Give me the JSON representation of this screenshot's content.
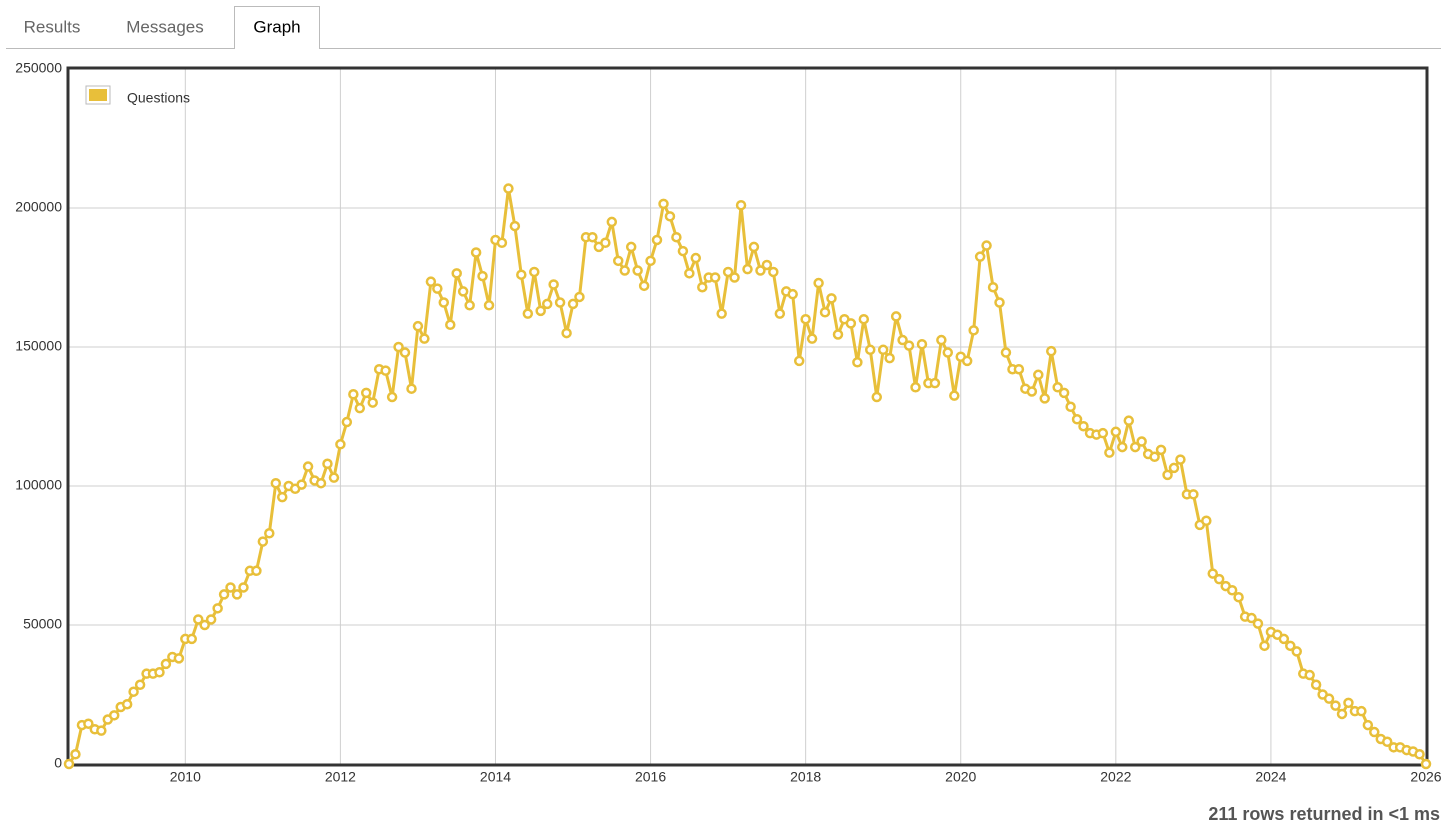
{
  "tabs": [
    "Results",
    "Messages",
    "Graph"
  ],
  "active_tab": 2,
  "status": "211 rows returned in <1 ms",
  "chart_data": {
    "type": "line",
    "legend": "top-left",
    "grid": true,
    "xlim": [
      2008.5,
      2026
    ],
    "xticks": [
      2010,
      2012,
      2014,
      2016,
      2018,
      2020,
      2022,
      2024,
      2026
    ],
    "ylim": [
      0,
      250000
    ],
    "yticks": [
      0,
      50000,
      100000,
      150000,
      200000,
      250000
    ],
    "x": [
      2008.5,
      2008.583,
      2008.667,
      2008.75,
      2008.833,
      2008.917,
      2009,
      2009.083,
      2009.167,
      2009.25,
      2009.333,
      2009.417,
      2009.5,
      2009.583,
      2009.667,
      2009.75,
      2009.833,
      2009.917,
      2010,
      2010.083,
      2010.167,
      2010.25,
      2010.333,
      2010.417,
      2010.5,
      2010.583,
      2010.667,
      2010.75,
      2010.833,
      2010.917,
      2011,
      2011.083,
      2011.167,
      2011.25,
      2011.333,
      2011.417,
      2011.5,
      2011.583,
      2011.667,
      2011.75,
      2011.833,
      2011.917,
      2012,
      2012.083,
      2012.167,
      2012.25,
      2012.333,
      2012.417,
      2012.5,
      2012.583,
      2012.667,
      2012.75,
      2012.833,
      2012.917,
      2013,
      2013.083,
      2013.167,
      2013.25,
      2013.333,
      2013.417,
      2013.5,
      2013.583,
      2013.667,
      2013.75,
      2013.833,
      2013.917,
      2014,
      2014.083,
      2014.167,
      2014.25,
      2014.333,
      2014.417,
      2014.5,
      2014.583,
      2014.667,
      2014.75,
      2014.833,
      2014.917,
      2015,
      2015.083,
      2015.167,
      2015.25,
      2015.333,
      2015.417,
      2015.5,
      2015.583,
      2015.667,
      2015.75,
      2015.833,
      2015.917,
      2016,
      2016.083,
      2016.167,
      2016.25,
      2016.333,
      2016.417,
      2016.5,
      2016.583,
      2016.667,
      2016.75,
      2016.833,
      2016.917,
      2017,
      2017.083,
      2017.167,
      2017.25,
      2017.333,
      2017.417,
      2017.5,
      2017.583,
      2017.667,
      2017.75,
      2017.833,
      2017.917,
      2018,
      2018.083,
      2018.167,
      2018.25,
      2018.333,
      2018.417,
      2018.5,
      2018.583,
      2018.667,
      2018.75,
      2018.833,
      2018.917,
      2019,
      2019.083,
      2019.167,
      2019.25,
      2019.333,
      2019.417,
      2019.5,
      2019.583,
      2019.667,
      2019.75,
      2019.833,
      2019.917,
      2020,
      2020.083,
      2020.167,
      2020.25,
      2020.333,
      2020.417,
      2020.5,
      2020.583,
      2020.667,
      2020.75,
      2020.833,
      2020.917,
      2021,
      2021.083,
      2021.167,
      2021.25,
      2021.333,
      2021.417,
      2021.5,
      2021.583,
      2021.667,
      2021.75,
      2021.833,
      2021.917,
      2022,
      2022.083,
      2022.167,
      2022.25,
      2022.333,
      2022.417,
      2022.5,
      2022.583,
      2022.667,
      2022.75,
      2022.833,
      2022.917,
      2023,
      2023.083,
      2023.167,
      2023.25,
      2023.333,
      2023.417,
      2023.5,
      2023.583,
      2023.667,
      2023.75,
      2023.833,
      2023.917,
      2024,
      2024.083,
      2024.167,
      2024.25,
      2024.333,
      2024.417,
      2024.5,
      2024.583,
      2024.667,
      2024.75,
      2024.833,
      2024.917,
      2025,
      2025.083,
      2025.167,
      2025.25,
      2025.333,
      2025.417,
      2025.5,
      2025.583,
      2025.667,
      2025.75,
      2025.833,
      2025.917,
      2026
    ],
    "series": [
      {
        "name": "Questions",
        "color": "#e8bf3a",
        "values": [
          0,
          3500,
          14000,
          14500,
          12500,
          12000,
          16000,
          17500,
          20500,
          21500,
          26000,
          28500,
          32500,
          32500,
          33000,
          36000,
          38500,
          38000,
          45000,
          45000,
          52000,
          50000,
          52000,
          56000,
          61000,
          63500,
          61000,
          63500,
          69500,
          69500,
          80000,
          83000,
          101000,
          96000,
          100000,
          99000,
          100500,
          107000,
          102000,
          101000,
          108000,
          103000,
          115000,
          123000,
          133000,
          128000,
          133500,
          130000,
          142000,
          141500,
          132000,
          150000,
          148000,
          135000,
          157500,
          153000,
          173500,
          171000,
          166000,
          158000,
          176500,
          170000,
          165000,
          184000,
          175500,
          165000,
          188500,
          187500,
          207000,
          193500,
          176000,
          162000,
          177000,
          163000,
          165500,
          172500,
          166000,
          155000,
          165500,
          168000,
          189500,
          189500,
          186000,
          187500,
          195000,
          181000,
          177500,
          186000,
          177500,
          172000,
          181000,
          188500,
          201500,
          197000,
          189500,
          184500,
          176500,
          182000,
          171500,
          175000,
          175000,
          162000,
          177000,
          175000,
          201000,
          178000,
          186000,
          177500,
          179500,
          177000,
          162000,
          170000,
          169000,
          145000,
          160000,
          153000,
          173000,
          162500,
          167500,
          154500,
          160000,
          158500,
          144500,
          160000,
          149000,
          132000,
          149000,
          146000,
          161000,
          152500,
          150500,
          135500,
          151000,
          137000,
          137000,
          152500,
          148000,
          132500,
          146500,
          145000,
          156000,
          182500,
          186500,
          171500,
          166000,
          148000,
          142000,
          142000,
          135000,
          134000,
          140000,
          131500,
          148500,
          135500,
          133500,
          128500,
          124000,
          121500,
          119000,
          118500,
          119000,
          112000,
          119500,
          114000,
          123500,
          114000,
          116000,
          111500,
          110500,
          113000,
          104000,
          106500,
          109500,
          97000,
          97000,
          86000,
          87500,
          68500,
          66500,
          64000,
          62500,
          60000,
          53000,
          52500,
          50500,
          42500,
          47500,
          46500,
          45000,
          42500,
          40500,
          32500,
          32000,
          28500,
          25000,
          23500,
          21000,
          18000,
          22000,
          19000,
          19000,
          14000,
          11500,
          9000,
          8000,
          6000,
          6000,
          5000,
          4500,
          3500,
          0
        ]
      }
    ]
  }
}
